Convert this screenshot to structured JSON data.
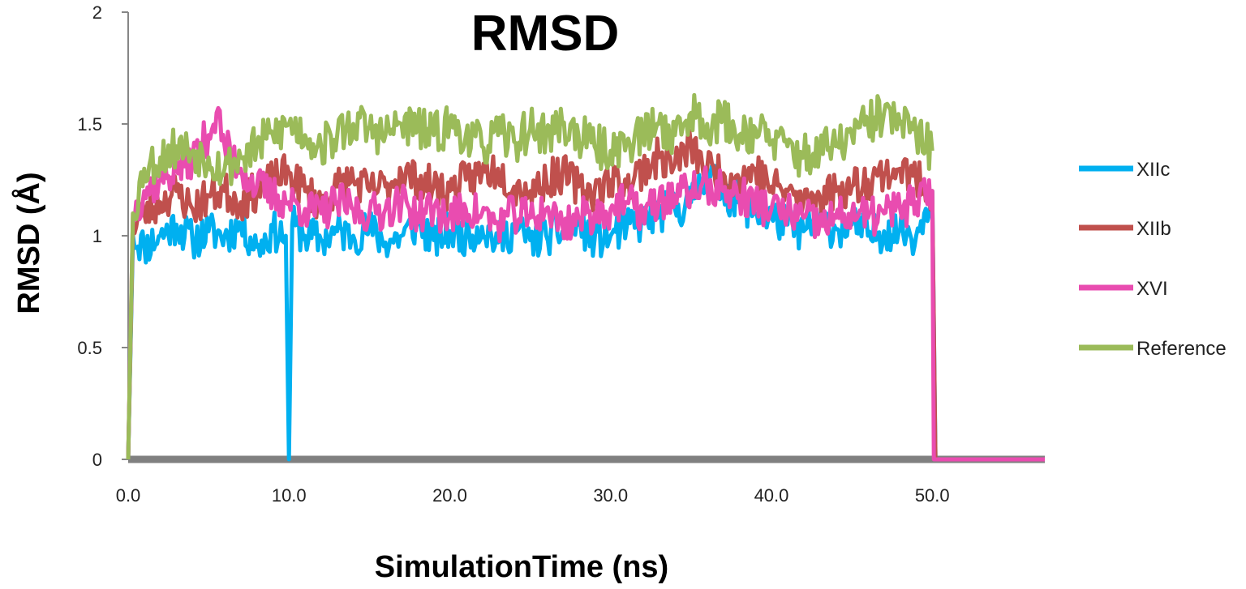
{
  "chart_data": {
    "type": "line",
    "title": "RMSD",
    "xlabel": "SimulationTime (ns)",
    "ylabel": "RMSD (Å)",
    "xlim": [
      0,
      57
    ],
    "ylim": [
      0,
      2
    ],
    "x_ticks": [
      "0.0",
      "10.0",
      "20.0",
      "30.0",
      "40.0",
      "50.0"
    ],
    "y_ticks": [
      "0",
      "0.5",
      "1",
      "1.5",
      "2"
    ],
    "grid": false,
    "legend_position": "right",
    "series": [
      {
        "name": "XIIc",
        "color": "#00b0f0",
        "x": [
          0,
          0.3,
          1,
          2,
          3,
          4,
          5,
          6,
          7,
          8,
          9,
          9.8,
          10,
          10.2,
          11,
          12,
          13,
          14,
          15,
          16,
          17,
          18,
          19,
          20,
          21,
          22,
          23,
          24,
          25,
          26,
          27,
          28,
          29,
          30,
          31,
          32,
          33,
          34,
          35,
          36,
          37,
          38,
          39,
          40,
          41,
          42,
          43,
          44,
          45,
          46,
          47,
          48,
          49,
          49.5,
          50,
          50.2,
          57
        ],
        "values": [
          0,
          1.0,
          0.95,
          1.0,
          1.05,
          0.98,
          1.02,
          1.0,
          1.05,
          0.95,
          1.02,
          1.0,
          0,
          1.05,
          1.0,
          0.98,
          1.02,
          1.0,
          1.03,
          0.97,
          1.0,
          1.05,
          0.98,
          1.02,
          1.0,
          1.04,
          0.97,
          1.03,
          0.98,
          1.0,
          1.02,
          1.05,
          0.98,
          1.0,
          1.04,
          1.06,
          1.1,
          1.12,
          1.15,
          1.3,
          1.2,
          1.15,
          1.1,
          1.08,
          1.05,
          1.02,
          1.06,
          1.03,
          1.05,
          1.0,
          1.02,
          1.03,
          1.0,
          1.1,
          1.2,
          0,
          0
        ]
      },
      {
        "name": "XIIb",
        "color": "#c0504d",
        "x": [
          0,
          0.3,
          1,
          2,
          3,
          4,
          5,
          6,
          7,
          8,
          9,
          10,
          11,
          12,
          13,
          14,
          15,
          16,
          17,
          18,
          19,
          20,
          21,
          22,
          23,
          24,
          25,
          26,
          27,
          28,
          29,
          30,
          31,
          32,
          33,
          34,
          35,
          36,
          37,
          38,
          39,
          40,
          41,
          42,
          43,
          44,
          45,
          46,
          47,
          48,
          49,
          50,
          50.2,
          57
        ],
        "values": [
          0,
          1.05,
          1.1,
          1.15,
          1.2,
          1.12,
          1.18,
          1.2,
          1.15,
          1.2,
          1.25,
          1.28,
          1.2,
          1.15,
          1.22,
          1.25,
          1.2,
          1.22,
          1.28,
          1.25,
          1.22,
          1.2,
          1.25,
          1.28,
          1.3,
          1.22,
          1.2,
          1.25,
          1.28,
          1.22,
          1.2,
          1.25,
          1.22,
          1.3,
          1.35,
          1.32,
          1.4,
          1.3,
          1.28,
          1.25,
          1.3,
          1.22,
          1.2,
          1.15,
          1.18,
          1.2,
          1.22,
          1.25,
          1.28,
          1.3,
          1.25,
          1.2,
          0,
          0
        ]
      },
      {
        "name": "XVI",
        "color": "#e94cb0",
        "x": [
          0,
          0.3,
          1,
          2,
          3,
          4,
          5,
          5.5,
          6,
          7,
          8,
          9,
          10,
          11,
          12,
          13,
          14,
          15,
          16,
          17,
          18,
          19,
          20,
          21,
          22,
          23,
          24,
          25,
          26,
          27,
          28,
          29,
          30,
          31,
          32,
          33,
          34,
          35,
          36,
          37,
          38,
          39,
          40,
          41,
          42,
          43,
          44,
          45,
          46,
          47,
          48,
          49,
          50,
          50.1,
          57
        ],
        "values": [
          0,
          1.1,
          1.2,
          1.25,
          1.3,
          1.35,
          1.45,
          1.55,
          1.4,
          1.3,
          1.22,
          1.18,
          1.15,
          1.12,
          1.1,
          1.15,
          1.12,
          1.1,
          1.12,
          1.15,
          1.1,
          1.12,
          1.08,
          1.12,
          1.1,
          1.05,
          1.1,
          1.08,
          1.12,
          1.05,
          1.08,
          1.1,
          1.12,
          1.15,
          1.1,
          1.15,
          1.18,
          1.2,
          1.22,
          1.2,
          1.18,
          1.15,
          1.12,
          1.1,
          1.08,
          1.05,
          1.08,
          1.1,
          1.08,
          1.1,
          1.12,
          1.15,
          1.2,
          0,
          0
        ]
      },
      {
        "name": "Reference",
        "color": "#9bbb59",
        "x": [
          0,
          0.3,
          1,
          2,
          3,
          4,
          5,
          6,
          7,
          8,
          9,
          10,
          11,
          12,
          13,
          14,
          15,
          16,
          17,
          18,
          19,
          20,
          21,
          22,
          23,
          24,
          25,
          26,
          27,
          28,
          29,
          30,
          31,
          32,
          33,
          34,
          35,
          36,
          37,
          38,
          39,
          40,
          41,
          42,
          43,
          44,
          45,
          46,
          47,
          48,
          49,
          50
        ],
        "values": [
          0,
          1.1,
          1.3,
          1.35,
          1.4,
          1.38,
          1.35,
          1.3,
          1.35,
          1.4,
          1.45,
          1.5,
          1.45,
          1.4,
          1.45,
          1.5,
          1.48,
          1.45,
          1.5,
          1.48,
          1.45,
          1.5,
          1.45,
          1.4,
          1.45,
          1.42,
          1.48,
          1.45,
          1.5,
          1.45,
          1.4,
          1.38,
          1.42,
          1.45,
          1.5,
          1.45,
          1.55,
          1.5,
          1.52,
          1.45,
          1.48,
          1.42,
          1.4,
          1.35,
          1.38,
          1.4,
          1.45,
          1.5,
          1.55,
          1.5,
          1.45,
          1.38
        ]
      }
    ]
  }
}
